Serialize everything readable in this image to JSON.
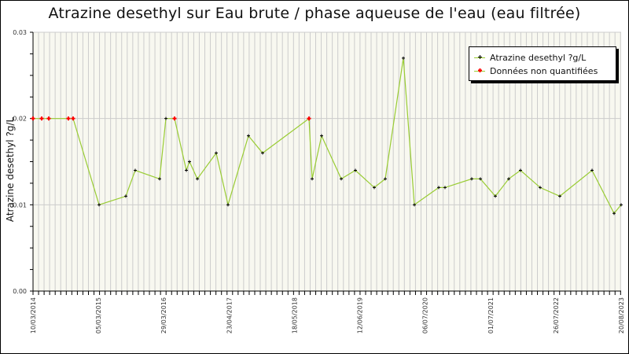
{
  "chart_data": {
    "type": "line",
    "title": "Atrazine desethyl sur Eau brute / phase aqueuse de l'eau (eau filtrée)",
    "xlabel": "",
    "ylabel": "Atrazine desethyl ?g/L",
    "ylim": [
      0,
      0.03
    ],
    "yticks": [
      "0.00",
      "0.01",
      "0.02",
      "0.03"
    ],
    "xtick_labels": [
      "10/03/2014",
      "05/03/2015",
      "29/03/2016",
      "23/04/2017",
      "18/05/2018",
      "12/06/2019",
      "06/07/2020",
      "01/07/2021",
      "26/07/2022",
      "20/08/2023"
    ],
    "grid": {
      "vertical": true,
      "horizontal": true
    },
    "legend_position": "top-right",
    "series": [
      {
        "name": "Atrazine desethyl ?g/L",
        "color": "#99cc33",
        "marker_color": "#000000",
        "points": [
          {
            "x": 42,
            "value": 0.02,
            "quantified": false
          },
          {
            "x": 53,
            "value": 0.02,
            "quantified": false
          },
          {
            "x": 62,
            "value": 0.02,
            "quantified": false
          },
          {
            "x": 87,
            "value": 0.02,
            "quantified": false
          },
          {
            "x": 93,
            "value": 0.02,
            "quantified": false
          },
          {
            "x": 126,
            "value": 0.01,
            "quantified": true
          },
          {
            "x": 160,
            "value": 0.011,
            "quantified": true
          },
          {
            "x": 172,
            "value": 0.014,
            "quantified": true
          },
          {
            "x": 203,
            "value": 0.013,
            "quantified": true
          },
          {
            "x": 211,
            "value": 0.02,
            "quantified": true
          },
          {
            "x": 222,
            "value": 0.02,
            "quantified": false
          },
          {
            "x": 237,
            "value": 0.014,
            "quantified": true
          },
          {
            "x": 241,
            "value": 0.015,
            "quantified": true
          },
          {
            "x": 251,
            "value": 0.013,
            "quantified": true
          },
          {
            "x": 275,
            "value": 0.016,
            "quantified": true
          },
          {
            "x": 290,
            "value": 0.01,
            "quantified": true
          },
          {
            "x": 316,
            "value": 0.018,
            "quantified": true
          },
          {
            "x": 334,
            "value": 0.016,
            "quantified": true
          },
          {
            "x": 393,
            "value": 0.02,
            "quantified": false
          },
          {
            "x": 397,
            "value": 0.013,
            "quantified": true
          },
          {
            "x": 409,
            "value": 0.018,
            "quantified": true
          },
          {
            "x": 434,
            "value": 0.013,
            "quantified": true
          },
          {
            "x": 452,
            "value": 0.014,
            "quantified": true
          },
          {
            "x": 476,
            "value": 0.012,
            "quantified": true
          },
          {
            "x": 490,
            "value": 0.013,
            "quantified": true
          },
          {
            "x": 513,
            "value": 0.027,
            "quantified": true
          },
          {
            "x": 527,
            "value": 0.01,
            "quantified": true
          },
          {
            "x": 558,
            "value": 0.012,
            "quantified": true
          },
          {
            "x": 566,
            "value": 0.012,
            "quantified": true
          },
          {
            "x": 600,
            "value": 0.013,
            "quantified": true
          },
          {
            "x": 611,
            "value": 0.013,
            "quantified": true
          },
          {
            "x": 630,
            "value": 0.011,
            "quantified": true
          },
          {
            "x": 647,
            "value": 0.013,
            "quantified": true
          },
          {
            "x": 662,
            "value": 0.014,
            "quantified": true
          },
          {
            "x": 687,
            "value": 0.012,
            "quantified": true
          },
          {
            "x": 712,
            "value": 0.011,
            "quantified": true
          },
          {
            "x": 753,
            "value": 0.014,
            "quantified": true
          },
          {
            "x": 781,
            "value": 0.009,
            "quantified": true
          },
          {
            "x": 790,
            "value": 0.01,
            "quantified": true
          }
        ]
      }
    ]
  },
  "legend": {
    "items": [
      {
        "label": "Atrazine desethyl ?g/L",
        "line_color": "#99cc33",
        "marker_color": "#000000"
      },
      {
        "label": "Données non quantifiées",
        "line_color": "#99cc33",
        "marker_color": "#ff0000"
      }
    ]
  },
  "colors": {
    "plot_bg": "#f8f8f0",
    "grid": "#cccccc",
    "line": "#99cc33",
    "marker": "#000000",
    "non_quantified": "#ff0000"
  }
}
